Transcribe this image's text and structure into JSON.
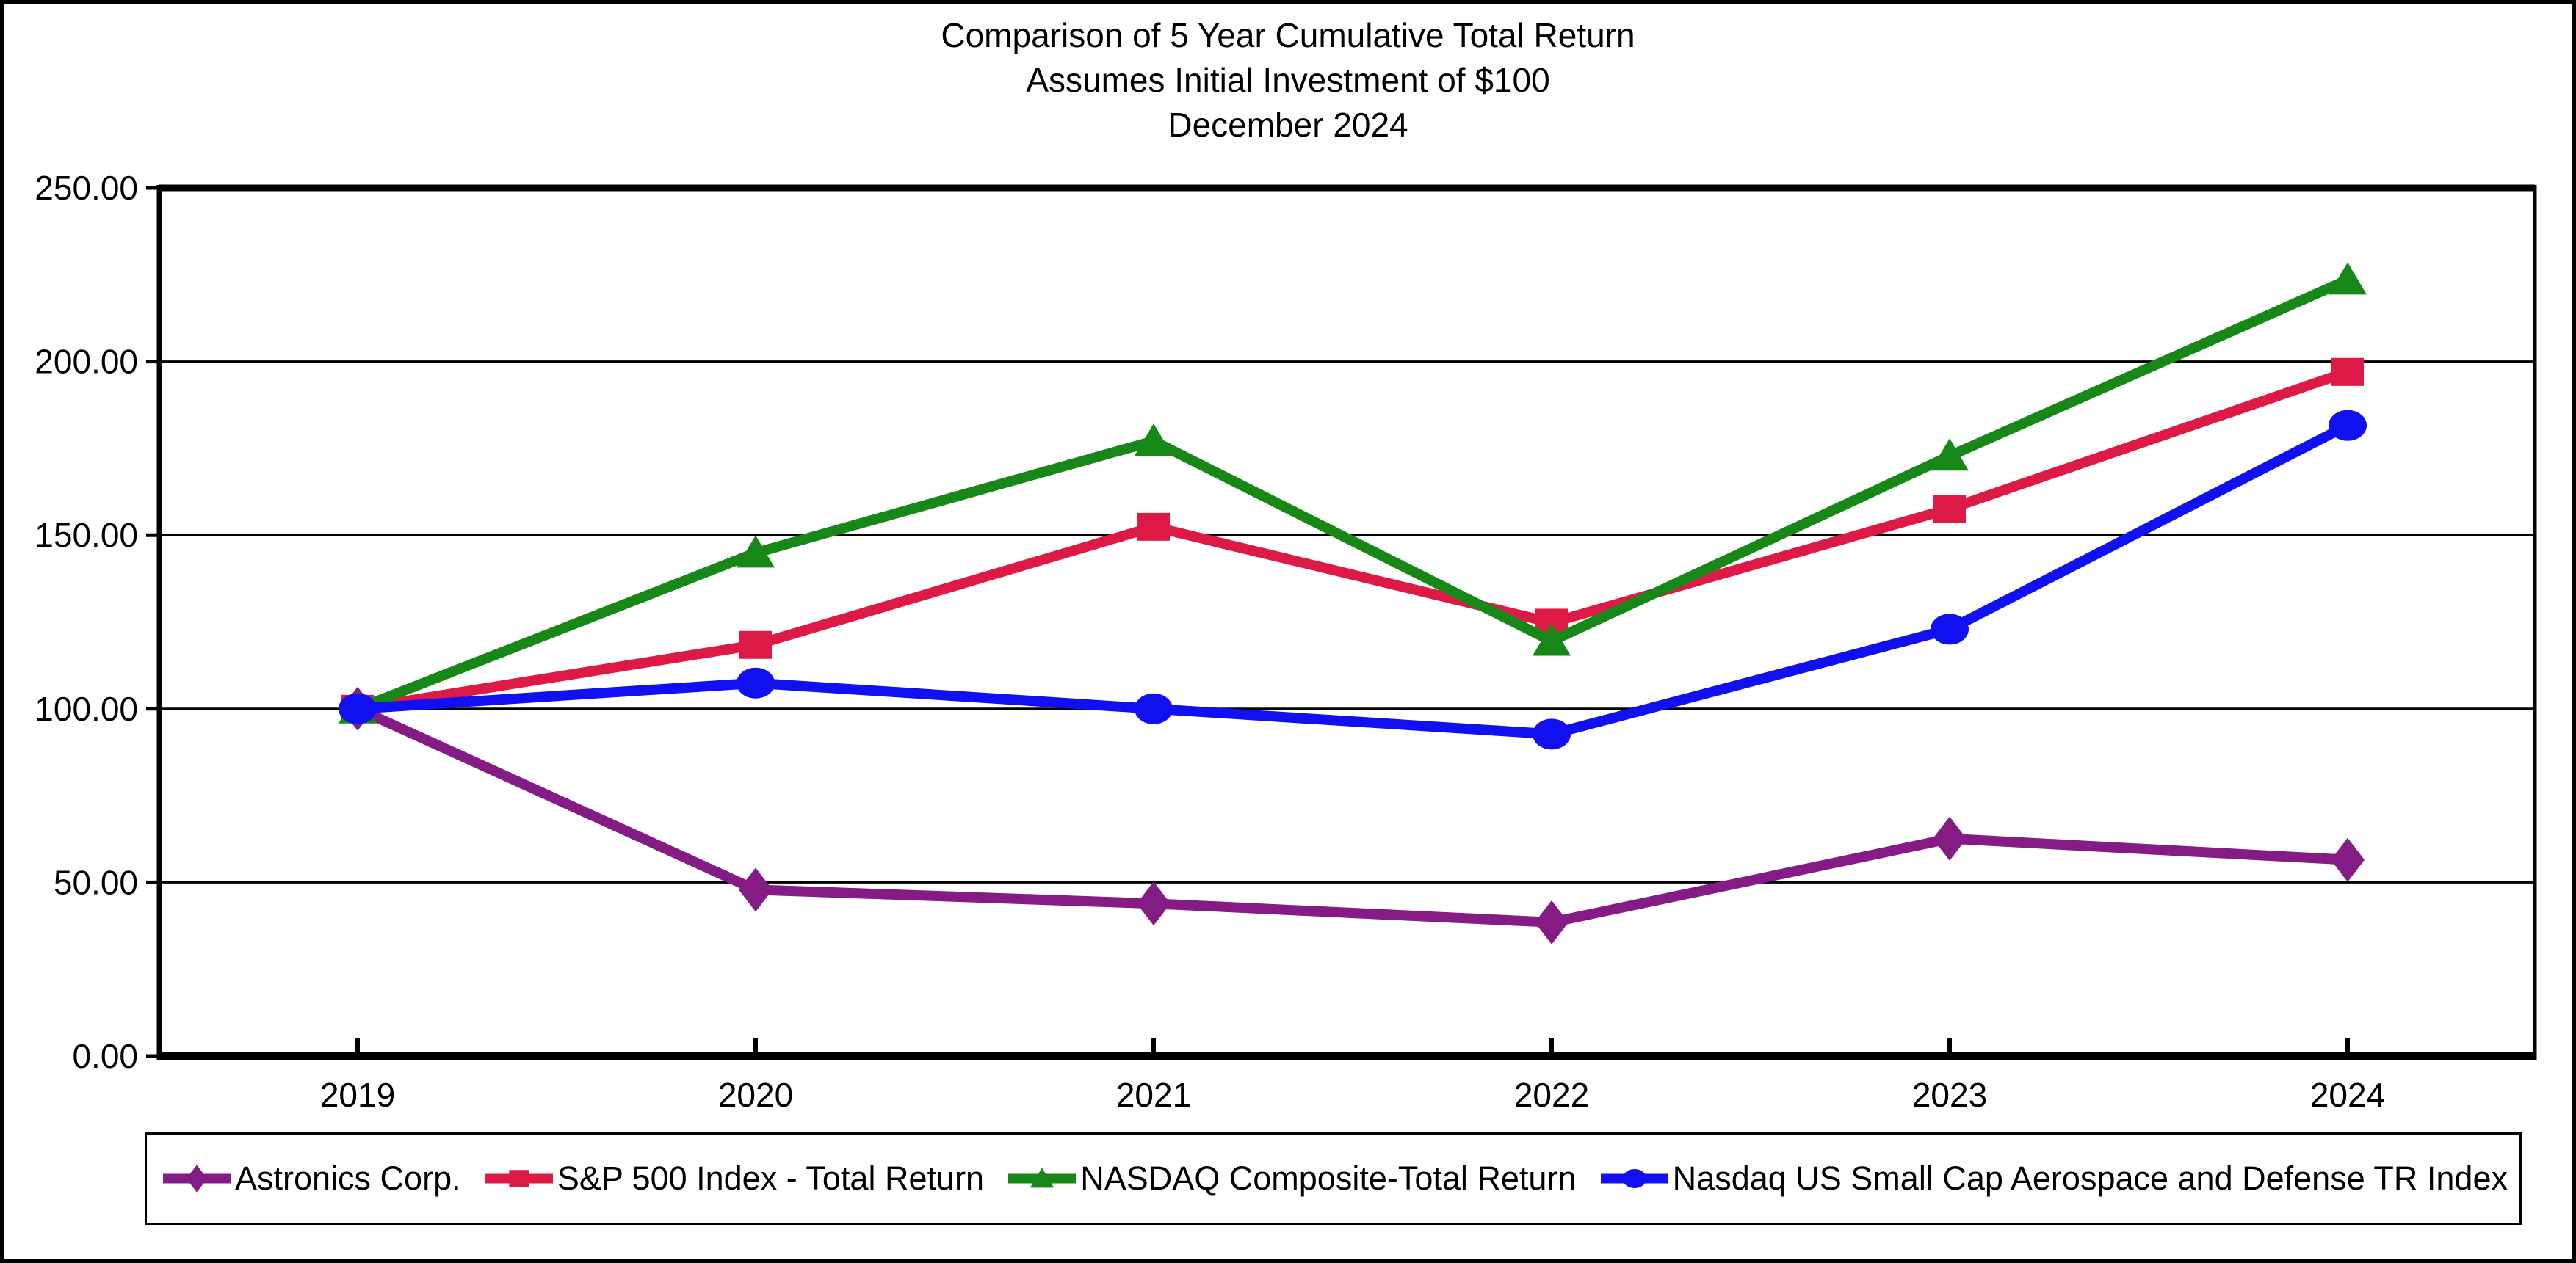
{
  "title": {
    "line1": "Comparison of 5 Year Cumulative Total Return",
    "line2": "Assumes Initial Investment of $100",
    "line3": "December 2024"
  },
  "chart_data": {
    "type": "line",
    "categories": [
      "2019",
      "2020",
      "2021",
      "2022",
      "2023",
      "2024"
    ],
    "series": [
      {
        "name": "Astronics Corp.",
        "color": "#851B85",
        "marker": "diamond",
        "values": [
          100.0,
          47.9,
          43.9,
          38.5,
          62.6,
          56.5
        ]
      },
      {
        "name": "S&P 500 Index - Total Return",
        "color": "#DC1A45",
        "marker": "square",
        "values": [
          100.0,
          118.4,
          152.4,
          124.8,
          157.6,
          197.0
        ]
      },
      {
        "name": "NASDAQ Composite-Total Return",
        "color": "#178717",
        "marker": "triangle",
        "values": [
          100.0,
          144.9,
          177.1,
          119.5,
          172.8,
          223.5
        ]
      },
      {
        "name": "Nasdaq US Small Cap Aerospace and Defense TR Index",
        "color": "#1010F0",
        "marker": "circle",
        "values": [
          100.0,
          107.4,
          100.0,
          92.7,
          122.9,
          181.6
        ]
      }
    ],
    "ylim": [
      0,
      250
    ],
    "ytick_step": 50,
    "ytick_labels": [
      "0.00",
      "50.00",
      "100.00",
      "150.00",
      "200.00",
      "250.00"
    ],
    "grid": true,
    "legend_position": "bottom"
  }
}
